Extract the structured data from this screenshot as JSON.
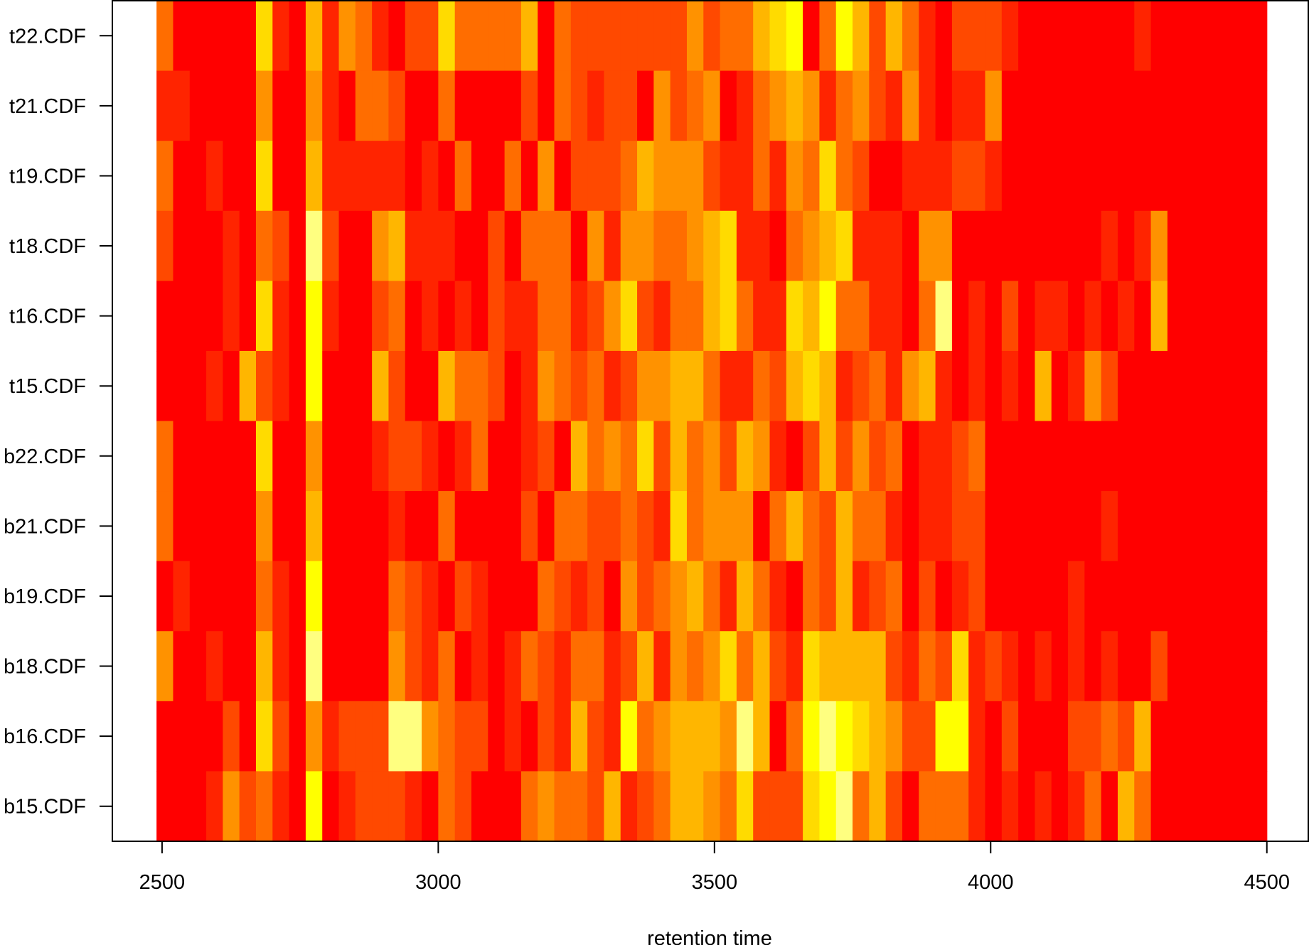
{
  "chart_data": {
    "type": "heatmap",
    "title": "",
    "xlabel": "retention time",
    "ylabel": "",
    "xlim": [
      2410,
      4575
    ],
    "x_ticks": [
      2500,
      3000,
      3500,
      4000,
      4500
    ],
    "x_range": [
      2490,
      4500
    ],
    "bin_width": 30,
    "rows": [
      "t22.CDF",
      "t21.CDF",
      "t19.CDF",
      "t18.CDF",
      "t16.CDF",
      "t15.CDF",
      "b22.CDF",
      "b21.CDF",
      "b19.CDF",
      "b18.CDF",
      "b16.CDF",
      "b15.CDF"
    ],
    "row_label_display": [
      "t22.CDF",
      "t21.CDF",
      "t19.CDF",
      "t18.CDF",
      "t16.CDF",
      "t15.CDF",
      "b22.CDF",
      "b21.CDF",
      "b19.CDF",
      "b18.CDF",
      "b16.CDF",
      "b15.CDF"
    ],
    "palette": [
      "#FF0000",
      "#FF2400",
      "#FF4900",
      "#FF6D00",
      "#FF9200",
      "#FFB600",
      "#FFDB00",
      "#FFFF00",
      "#FFFF80"
    ],
    "values_note": "intensity levels 0..8 indexing palette, columns of width 30 starting at 2490",
    "values": [
      [
        3,
        0,
        0,
        0,
        0,
        0,
        6,
        1,
        0,
        5,
        1,
        4,
        3,
        1,
        0,
        2,
        2,
        6,
        3,
        3,
        3,
        3,
        5,
        0,
        3,
        2,
        2,
        2,
        2,
        2,
        2,
        2,
        4,
        2,
        3,
        3,
        5,
        6,
        7,
        0,
        3,
        7,
        5,
        2,
        5,
        3,
        1,
        0,
        2,
        2,
        2,
        1,
        0,
        0,
        0,
        0,
        0,
        0,
        0,
        1,
        0,
        0,
        0,
        0,
        0,
        0,
        0
      ],
      [
        1,
        1,
        0,
        0,
        0,
        0,
        4,
        0,
        0,
        4,
        1,
        0,
        3,
        3,
        2,
        0,
        0,
        3,
        0,
        0,
        0,
        0,
        2,
        0,
        3,
        2,
        1,
        2,
        2,
        0,
        4,
        2,
        3,
        4,
        0,
        1,
        3,
        4,
        5,
        4,
        1,
        3,
        4,
        2,
        1,
        4,
        1,
        0,
        1,
        1,
        4,
        0,
        0,
        0,
        0,
        0,
        0,
        0,
        0,
        0,
        0,
        0,
        0,
        0,
        0,
        0,
        0
      ],
      [
        3,
        0,
        0,
        1,
        0,
        0,
        6,
        0,
        0,
        5,
        1,
        1,
        1,
        1,
        1,
        0,
        1,
        0,
        3,
        0,
        0,
        3,
        0,
        4,
        0,
        2,
        2,
        2,
        3,
        5,
        4,
        4,
        4,
        2,
        1,
        1,
        3,
        1,
        4,
        3,
        6,
        3,
        2,
        0,
        0,
        1,
        1,
        1,
        2,
        2,
        1,
        0,
        0,
        0,
        0,
        0,
        0,
        0,
        0,
        0,
        0,
        0,
        0,
        0,
        0,
        0,
        0
      ],
      [
        2,
        0,
        0,
        0,
        1,
        0,
        3,
        2,
        0,
        8,
        2,
        0,
        0,
        4,
        5,
        1,
        1,
        1,
        0,
        0,
        2,
        0,
        3,
        3,
        3,
        0,
        4,
        1,
        4,
        4,
        3,
        3,
        4,
        5,
        6,
        1,
        1,
        0,
        3,
        4,
        5,
        6,
        1,
        1,
        1,
        0,
        4,
        4,
        0,
        0,
        0,
        0,
        0,
        0,
        0,
        0,
        0,
        1,
        0,
        1,
        4,
        0,
        0,
        0,
        0,
        0,
        0
      ],
      [
        0,
        0,
        0,
        0,
        1,
        0,
        6,
        1,
        0,
        7,
        1,
        0,
        0,
        2,
        3,
        0,
        1,
        0,
        1,
        0,
        2,
        1,
        1,
        3,
        3,
        1,
        2,
        4,
        6,
        2,
        1,
        3,
        3,
        5,
        6,
        3,
        1,
        1,
        6,
        5,
        7,
        3,
        3,
        1,
        1,
        0,
        3,
        8,
        0,
        1,
        0,
        2,
        0,
        1,
        1,
        0,
        1,
        0,
        1,
        0,
        5,
        0,
        0,
        0,
        0,
        0,
        0
      ],
      [
        0,
        0,
        0,
        1,
        0,
        5,
        2,
        1,
        0,
        7,
        0,
        0,
        0,
        5,
        2,
        0,
        0,
        5,
        3,
        3,
        2,
        0,
        1,
        4,
        3,
        2,
        3,
        1,
        2,
        4,
        4,
        5,
        5,
        3,
        1,
        1,
        3,
        2,
        5,
        6,
        5,
        1,
        2,
        3,
        1,
        4,
        5,
        1,
        0,
        1,
        0,
        1,
        0,
        5,
        0,
        1,
        4,
        2,
        0,
        0,
        0,
        0,
        0,
        0,
        0,
        0,
        0
      ],
      [
        3,
        0,
        0,
        0,
        0,
        0,
        6,
        0,
        0,
        4,
        0,
        0,
        0,
        1,
        2,
        2,
        1,
        0,
        1,
        3,
        0,
        0,
        1,
        2,
        0,
        5,
        3,
        4,
        3,
        6,
        2,
        5,
        3,
        4,
        2,
        5,
        4,
        1,
        0,
        2,
        5,
        2,
        4,
        2,
        3,
        0,
        1,
        1,
        2,
        3,
        0,
        0,
        0,
        0,
        0,
        0,
        0,
        0,
        0,
        0,
        0,
        0,
        0,
        0,
        0,
        0,
        0
      ],
      [
        3,
        0,
        0,
        0,
        0,
        0,
        4,
        0,
        0,
        5,
        0,
        0,
        0,
        0,
        1,
        0,
        0,
        3,
        0,
        0,
        0,
        0,
        2,
        0,
        3,
        3,
        2,
        2,
        3,
        2,
        1,
        6,
        3,
        4,
        4,
        4,
        0,
        3,
        5,
        3,
        2,
        5,
        3,
        3,
        1,
        0,
        1,
        1,
        2,
        2,
        0,
        0,
        0,
        0,
        0,
        0,
        0,
        1,
        0,
        0,
        0,
        0,
        0,
        0,
        0,
        0,
        0
      ],
      [
        0,
        1,
        0,
        0,
        0,
        0,
        3,
        1,
        0,
        7,
        0,
        0,
        0,
        0,
        3,
        2,
        1,
        0,
        2,
        1,
        0,
        0,
        0,
        3,
        2,
        1,
        2,
        0,
        4,
        2,
        3,
        4,
        5,
        3,
        1,
        5,
        3,
        1,
        0,
        3,
        2,
        5,
        1,
        2,
        3,
        0,
        2,
        0,
        1,
        2,
        0,
        0,
        0,
        0,
        0,
        1,
        0,
        0,
        0,
        0,
        0,
        0,
        0,
        0,
        0,
        0,
        0
      ],
      [
        4,
        0,
        0,
        1,
        0,
        0,
        5,
        1,
        0,
        8,
        0,
        0,
        0,
        0,
        4,
        2,
        1,
        3,
        0,
        1,
        0,
        1,
        3,
        2,
        1,
        3,
        3,
        1,
        2,
        5,
        1,
        4,
        3,
        4,
        6,
        3,
        5,
        2,
        1,
        6,
        5,
        5,
        5,
        5,
        2,
        1,
        3,
        2,
        6,
        1,
        2,
        1,
        0,
        1,
        0,
        1,
        0,
        1,
        0,
        0,
        2,
        0,
        0,
        0,
        0,
        0,
        0
      ],
      [
        0,
        0,
        0,
        0,
        2,
        0,
        6,
        2,
        0,
        4,
        1,
        2,
        2,
        2,
        8,
        8,
        4,
        3,
        2,
        2,
        0,
        1,
        0,
        2,
        1,
        5,
        2,
        1,
        7,
        3,
        4,
        5,
        5,
        5,
        4,
        8,
        5,
        0,
        3,
        7,
        8,
        7,
        6,
        5,
        4,
        2,
        2,
        7,
        7,
        1,
        0,
        2,
        0,
        0,
        0,
        2,
        2,
        3,
        2,
        5,
        0,
        0,
        0,
        0,
        0,
        0,
        0
      ],
      [
        0,
        0,
        0,
        1,
        4,
        2,
        3,
        1,
        0,
        7,
        0,
        1,
        2,
        2,
        2,
        1,
        0,
        3,
        2,
        0,
        0,
        0,
        3,
        4,
        3,
        3,
        2,
        5,
        1,
        2,
        3,
        5,
        5,
        4,
        3,
        6,
        2,
        2,
        2,
        6,
        7,
        8,
        3,
        5,
        2,
        0,
        3,
        3,
        3,
        1,
        0,
        1,
        0,
        1,
        0,
        1,
        3,
        0,
        5,
        3,
        0,
        0,
        0,
        0,
        0,
        0,
        0
      ]
    ]
  }
}
